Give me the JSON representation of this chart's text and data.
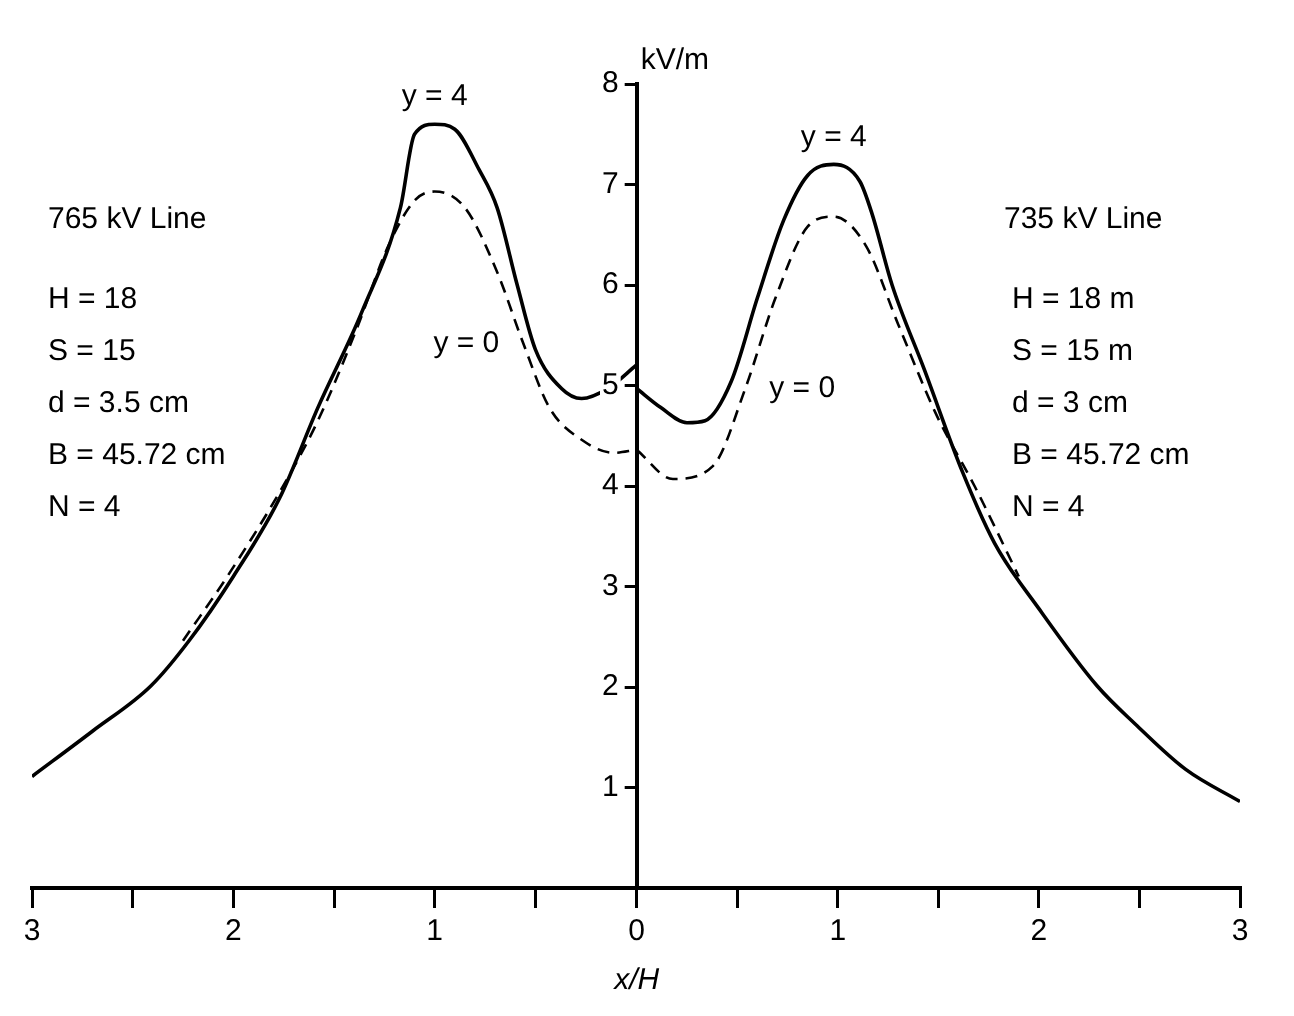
{
  "chart_data": [
    {
      "type": "line",
      "xlim": [
        3,
        0
      ],
      "ylim": [
        0,
        8
      ],
      "tick_labels": "x",
      "xticks": [
        3,
        {
          "value": 2.5,
          "label": null
        },
        2,
        {
          "value": 1.5,
          "label": null
        },
        1,
        {
          "value": 0.5,
          "label": null
        }
      ],
      "grid": false,
      "legend": false,
      "marker": "none",
      "series": [
        {
          "name": "y = 4",
          "color": "#000000",
          "line_style": "solid",
          "x": [
            3,
            2.7,
            2.41,
            2.22,
            2,
            1.77,
            1.58,
            1.36,
            1.17,
            1.1,
            1,
            0.9,
            0.78,
            0.69,
            0.59,
            0.5,
            0.37,
            0.27,
            0.14,
            0
          ],
          "values": [
            1.11,
            1.56,
            2.01,
            2.46,
            3.1,
            3.88,
            4.78,
            5.74,
            6.77,
            7.5,
            7.6,
            7.55,
            7.15,
            6.77,
            6,
            5.36,
            4.97,
            4.87,
            4.97,
            5.2
          ]
        },
        {
          "name": "y = 0",
          "color": "#000000",
          "line_style": "dashed",
          "x": [
            2.25,
            2.03,
            1.77,
            1.58,
            1.39,
            1.23,
            1.1,
            1,
            0.85,
            0.69,
            0.56,
            0.43,
            0.27,
            0.11,
            0
          ],
          "values": [
            2.46,
            3.1,
            3.94,
            4.65,
            5.55,
            6.39,
            6.84,
            6.93,
            6.77,
            6.13,
            5.42,
            4.78,
            4.46,
            4.33,
            4.36
          ]
        }
      ],
      "annotations": [
        "765 kV Line",
        "H = 18",
        "S = 15",
        "d = 3.5 cm",
        "B = 45.72 cm",
        "N = 4"
      ]
    },
    {
      "type": "line",
      "xlabel": "x/H",
      "ylabel": "kV/m",
      "xlim": [
        0,
        3
      ],
      "ylim": [
        0,
        8
      ],
      "xticks": [
        0,
        {
          "value": 0.5,
          "label": null
        },
        1,
        {
          "value": 1.5,
          "label": null
        },
        2,
        {
          "value": 2.5,
          "label": null
        },
        3
      ],
      "yticks": [
        1,
        2,
        3,
        4,
        5,
        6,
        7,
        8
      ],
      "grid": false,
      "legend": false,
      "marker": "none",
      "series": [
        {
          "name": "y = 4",
          "color": "#000000",
          "line_style": "solid",
          "x": [
            0,
            0.12,
            0.25,
            0.34,
            0.47,
            0.6,
            0.73,
            0.85,
            0.98,
            1.11,
            1.17,
            1.27,
            1.43,
            1.62,
            1.78,
            2,
            2.29,
            2.48,
            2.73,
            3
          ],
          "values": [
            4.97,
            4.78,
            4.63,
            4.65,
            5.04,
            5.87,
            6.64,
            7.09,
            7.2,
            7.03,
            6.71,
            6,
            5.16,
            4.14,
            3.43,
            2.78,
            2.01,
            1.63,
            1.18,
            0.86
          ]
        },
        {
          "name": "y = 0",
          "color": "#000000",
          "line_style": "dashed",
          "x": [
            0,
            0.18,
            0.38,
            0.54,
            0.69,
            0.85,
            0.98,
            1.14,
            1.3,
            1.49,
            1.68,
            1.9
          ],
          "values": [
            4.36,
            4.07,
            4.2,
            4.97,
            5.87,
            6.58,
            6.68,
            6.39,
            5.61,
            4.71,
            4,
            3.1
          ]
        }
      ],
      "annotations": [
        "735 kV Line",
        "H = 18 m",
        "S = 15 m",
        "d = 3 cm",
        "B = 45.72 cm",
        "N = 4"
      ]
    }
  ]
}
